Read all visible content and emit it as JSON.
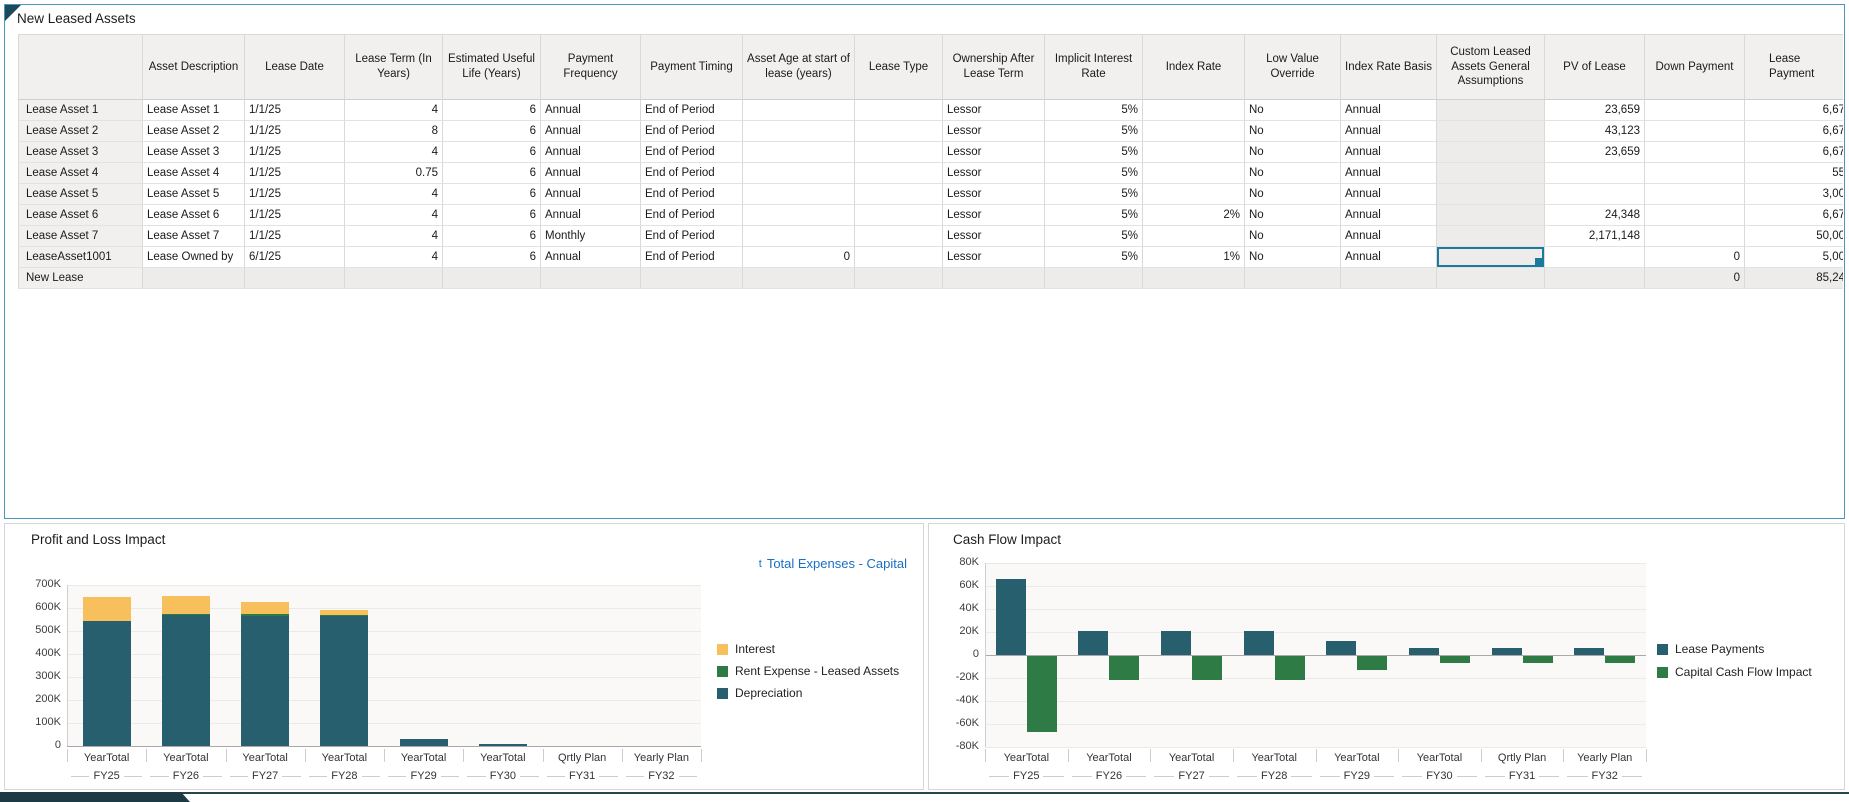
{
  "table": {
    "title": "New Leased Assets",
    "columns": [
      {
        "label": ""
      },
      {
        "label": "Asset Description"
      },
      {
        "label": "Lease Date"
      },
      {
        "label": "Lease Term (In Years)"
      },
      {
        "label": "Estimated Useful Life (Years)"
      },
      {
        "label": "Payment Frequency"
      },
      {
        "label": "Payment Timing"
      },
      {
        "label": "Asset Age at start of lease (years)"
      },
      {
        "label": "Lease Type"
      },
      {
        "label": "Ownership After Lease Term"
      },
      {
        "label": "Implicit Interest Rate"
      },
      {
        "label": "Index Rate"
      },
      {
        "label": "Low Value Override"
      },
      {
        "label": "Index Rate Basis"
      },
      {
        "label": "Custom Leased Assets General Assumptions",
        "readonly": true
      },
      {
        "label": "PV of Lease"
      },
      {
        "label": "Down Payment"
      },
      {
        "label": "Lease Payment"
      }
    ],
    "rows": [
      {
        "label": "Lease Asset 1",
        "cells": [
          "Lease Asset 1",
          "1/1/25",
          "4",
          "6",
          "Annual",
          "End of Period",
          "",
          "",
          "Lessor",
          "5%",
          "",
          "No",
          "Annual",
          "",
          "23,659",
          "",
          "6,67"
        ]
      },
      {
        "label": "Lease Asset 2",
        "cells": [
          "Lease Asset 2",
          "1/1/25",
          "8",
          "6",
          "Annual",
          "End of Period",
          "",
          "",
          "Lessor",
          "5%",
          "",
          "No",
          "Annual",
          "",
          "43,123",
          "",
          "6,67"
        ]
      },
      {
        "label": "Lease Asset 3",
        "cells": [
          "Lease Asset 3",
          "1/1/25",
          "4",
          "6",
          "Annual",
          "End of Period",
          "",
          "",
          "Lessor",
          "5%",
          "",
          "No",
          "Annual",
          "",
          "23,659",
          "",
          "6,67"
        ]
      },
      {
        "label": "Lease Asset 4",
        "cells": [
          "Lease Asset 4",
          "1/1/25",
          "0.75",
          "6",
          "Annual",
          "End of Period",
          "",
          "",
          "Lessor",
          "5%",
          "",
          "No",
          "Annual",
          "",
          "",
          "",
          "55"
        ]
      },
      {
        "label": "Lease Asset 5",
        "cells": [
          "Lease Asset 5",
          "1/1/25",
          "4",
          "6",
          "Annual",
          "End of Period",
          "",
          "",
          "Lessor",
          "5%",
          "",
          "No",
          "Annual",
          "",
          "",
          "",
          "3,00"
        ]
      },
      {
        "label": "Lease Asset 6",
        "cells": [
          "Lease Asset 6",
          "1/1/25",
          "4",
          "6",
          "Annual",
          "End of Period",
          "",
          "",
          "Lessor",
          "5%",
          "2%",
          "No",
          "Annual",
          "",
          "24,348",
          "",
          "6,67"
        ]
      },
      {
        "label": "Lease Asset 7",
        "cells": [
          "Lease Asset 7",
          "1/1/25",
          "4",
          "6",
          "Monthly",
          "End of Period",
          "",
          "",
          "Lessor",
          "5%",
          "",
          "No",
          "Annual",
          "",
          "2,171,148",
          "",
          "50,00"
        ]
      },
      {
        "label": "LeaseAsset1001",
        "cells": [
          "Lease Owned by",
          "6/1/25",
          "4",
          "6",
          "Annual",
          "End of Period",
          "0",
          "",
          "Lessor",
          "5%",
          "1%",
          "No",
          "Annual",
          "",
          "",
          "0",
          "5,00"
        ]
      },
      {
        "label": "New Lease",
        "grayed": true,
        "cells": [
          "",
          "",
          "",
          "",
          "",
          "",
          "",
          "",
          "",
          "",
          "",
          "",
          "",
          "",
          "",
          "0",
          "85,24"
        ]
      }
    ],
    "selected_cell": {
      "row": 7,
      "col": 14
    }
  },
  "chart_data": [
    {
      "id": "pnl",
      "type": "bar",
      "stacked": true,
      "title": "Profit and Loss Impact",
      "link_icon": "t",
      "link_label": "Total Expenses - Capital",
      "categories_line1": [
        "YearTotal",
        "YearTotal",
        "YearTotal",
        "YearTotal",
        "YearTotal",
        "YearTotal",
        "Qrtly Plan",
        "Yearly Plan"
      ],
      "categories": [
        "FY25",
        "FY26",
        "FY27",
        "FY28",
        "FY29",
        "FY30",
        "FY31",
        "FY32"
      ],
      "series": [
        {
          "name": "Interest",
          "color": "#F8C05C",
          "values": [
            104000,
            77000,
            50000,
            21000,
            0,
            0,
            0,
            0
          ]
        },
        {
          "name": "Rent Expense - Leased Assets",
          "color": "#2E7B45",
          "values": [
            0,
            6000,
            7000,
            5000,
            0,
            0,
            0,
            0
          ]
        },
        {
          "name": "Depreciation",
          "color": "#275F6E",
          "values": [
            542000,
            568000,
            567000,
            566000,
            32000,
            8000,
            0,
            0
          ]
        }
      ],
      "ylim": [
        0,
        700000
      ],
      "ytick": 100000,
      "ytick_labels": [
        "0",
        "100K",
        "200K",
        "300K",
        "400K",
        "500K",
        "600K",
        "700K"
      ],
      "grid": true,
      "legend_position": "right"
    },
    {
      "id": "cashflow",
      "type": "bar",
      "stacked": false,
      "title": "Cash Flow Impact",
      "categories_line1": [
        "YearTotal",
        "YearTotal",
        "YearTotal",
        "YearTotal",
        "YearTotal",
        "YearTotal",
        "Qrtly Plan",
        "Yearly Plan"
      ],
      "categories": [
        "FY25",
        "FY26",
        "FY27",
        "FY28",
        "FY29",
        "FY30",
        "FY31",
        "FY32"
      ],
      "series": [
        {
          "name": "Lease Payments",
          "color": "#275F6E",
          "values": [
            66000,
            21000,
            21000,
            21000,
            12000,
            6000,
            6000,
            6000
          ]
        },
        {
          "name": "Capital Cash Flow Impact",
          "color": "#2E7B45",
          "values": [
            -66000,
            -21000,
            -21000,
            -21000,
            -12000,
            -6000,
            -6000,
            -6000
          ]
        }
      ],
      "ylim": [
        -80000,
        80000
      ],
      "ytick": 20000,
      "ytick_labels": [
        "-80K",
        "-60K",
        "-40K",
        "-20K",
        "0",
        "20K",
        "40K",
        "60K",
        "80K"
      ],
      "grid": true,
      "legend_position": "right"
    }
  ],
  "colors": {
    "panel_border": "#4A96BC",
    "selection": "#1B7A9E",
    "link_blue": "#1A6FC4",
    "teal": "#275F6E",
    "green": "#2E7B45",
    "yellow": "#F8C05C"
  }
}
